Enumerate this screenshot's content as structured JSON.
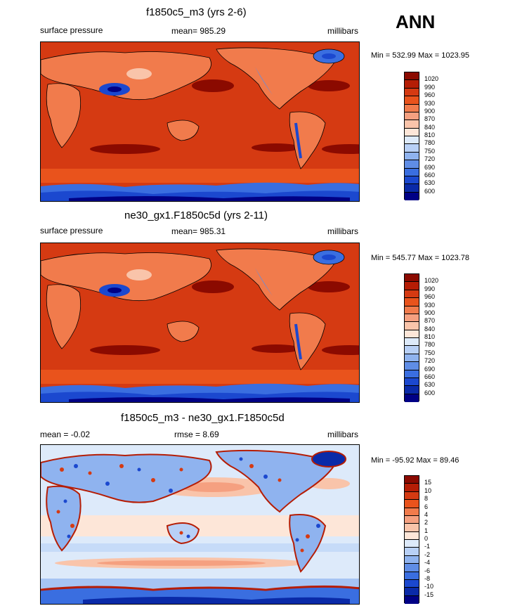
{
  "corner_label": "ANN",
  "panels": [
    {
      "title": "f1850c5_m3 (yrs 2-6)",
      "left_label": "surface pressure",
      "center_label": "mean= 985.29",
      "right_label": "millibars",
      "minmax": "Min = 532.99 Max = 1023.95"
    },
    {
      "title": "ne30_gx1.F1850c5d (yrs 2-11)",
      "left_label": "surface pressure",
      "center_label": "mean= 985.31",
      "right_label": "millibars",
      "minmax": "Min = 545.77 Max = 1023.78"
    },
    {
      "title": "f1850c5_m3 - ne30_gx1.F1850c5d",
      "left_label": "mean =  -0.02",
      "center_label": "rmse =   8.69",
      "right_label": "millibars",
      "minmax": "Min = -95.92 Max =  89.46"
    }
  ],
  "colorbars": {
    "absolute": {
      "labels": [
        "1020",
        "990",
        "960",
        "930",
        "900",
        "870",
        "840",
        "810",
        "780",
        "750",
        "720",
        "690",
        "660",
        "630",
        "600"
      ],
      "colors": [
        "#8b0a00",
        "#b51d05",
        "#d53a12",
        "#e9531c",
        "#f17b4c",
        "#f5a080",
        "#f9c4aa",
        "#fde6d8",
        "#ddeafa",
        "#b8d0f6",
        "#8fb3ef",
        "#5f8de6",
        "#3a6ee0",
        "#1b48cf",
        "#0a2aa8",
        "#000085"
      ]
    },
    "difference": {
      "labels": [
        "15",
        "10",
        "8",
        "6",
        "4",
        "2",
        "1",
        "0",
        "-1",
        "-2",
        "-4",
        "-6",
        "-8",
        "-10",
        "-15"
      ],
      "colors": [
        "#8b0a00",
        "#b51d05",
        "#d53a12",
        "#e9531c",
        "#f17b4c",
        "#f5a080",
        "#f9c4aa",
        "#fde6d8",
        "#ddeafa",
        "#b8d0f6",
        "#8fb3ef",
        "#5f8de6",
        "#3a6ee0",
        "#1b48cf",
        "#0a2aa8",
        "#000085"
      ]
    }
  }
}
